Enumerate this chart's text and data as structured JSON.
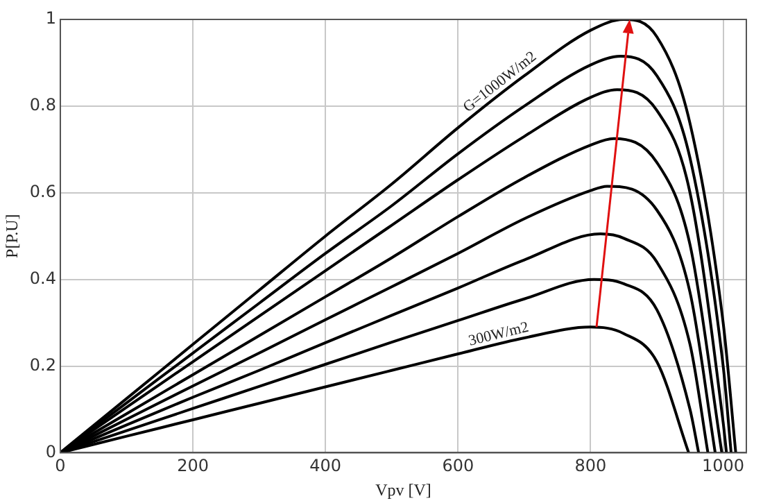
{
  "chart_data": {
    "type": "line",
    "xlabel": "Vpv [V]",
    "ylabel": "P[P.U]",
    "xlim": [
      0,
      1035
    ],
    "xticks": [
      0,
      200,
      400,
      600,
      800,
      1000
    ],
    "ylim": [
      0,
      1
    ],
    "yticks": [
      0,
      0.2,
      0.4,
      0.6,
      0.8,
      1
    ],
    "grid": true,
    "legend": false,
    "marker": "none",
    "line_style": "solid",
    "series": [
      {
        "color": "#000000",
        "x": [
          0,
          100,
          200,
          300,
          400,
          500,
          600,
          700,
          800,
          850,
          900,
          950,
          1000,
          1019
        ],
        "values": [
          0,
          0.125,
          0.25,
          0.375,
          0.5,
          0.62,
          0.75,
          0.87,
          0.975,
          1.0,
          0.96,
          0.76,
          0.3,
          0
        ]
      },
      {
        "color": "#000000",
        "x": [
          0,
          100,
          200,
          300,
          400,
          500,
          600,
          700,
          800,
          845,
          900,
          950,
          1000,
          1012
        ],
        "values": [
          0,
          0.115,
          0.23,
          0.345,
          0.46,
          0.57,
          0.69,
          0.8,
          0.895,
          0.915,
          0.87,
          0.68,
          0.2,
          0
        ]
      },
      {
        "color": "#000000",
        "x": [
          0,
          100,
          200,
          300,
          400,
          500,
          600,
          700,
          800,
          840,
          900,
          950,
          1000,
          1005
        ],
        "values": [
          0,
          0.105,
          0.21,
          0.315,
          0.42,
          0.525,
          0.63,
          0.73,
          0.82,
          0.838,
          0.79,
          0.6,
          0.07,
          0
        ]
      },
      {
        "color": "#000000",
        "x": [
          0,
          100,
          200,
          300,
          400,
          500,
          600,
          700,
          800,
          835,
          900,
          950,
          998
        ],
        "values": [
          0,
          0.09,
          0.18,
          0.27,
          0.36,
          0.45,
          0.545,
          0.635,
          0.71,
          0.725,
          0.67,
          0.48,
          0
        ]
      },
      {
        "color": "#000000",
        "x": [
          0,
          100,
          200,
          300,
          400,
          500,
          600,
          700,
          800,
          825,
          900,
          950,
          988
        ],
        "values": [
          0,
          0.077,
          0.154,
          0.23,
          0.307,
          0.383,
          0.46,
          0.54,
          0.605,
          0.615,
          0.56,
          0.37,
          0
        ]
      },
      {
        "color": "#000000",
        "x": [
          0,
          100,
          200,
          300,
          400,
          500,
          600,
          700,
          815,
          850,
          900,
          950,
          977
        ],
        "values": [
          0,
          0.064,
          0.128,
          0.19,
          0.254,
          0.317,
          0.38,
          0.445,
          0.505,
          0.495,
          0.44,
          0.25,
          0
        ]
      },
      {
        "color": "#000000",
        "x": [
          0,
          100,
          200,
          300,
          400,
          500,
          600,
          700,
          805,
          850,
          900,
          950,
          963
        ],
        "values": [
          0,
          0.051,
          0.102,
          0.153,
          0.204,
          0.255,
          0.305,
          0.355,
          0.4,
          0.39,
          0.33,
          0.1,
          0
        ]
      },
      {
        "color": "#000000",
        "x": [
          0,
          100,
          200,
          300,
          400,
          500,
          600,
          700,
          800,
          850,
          900,
          948
        ],
        "values": [
          0,
          0.038,
          0.076,
          0.114,
          0.152,
          0.19,
          0.228,
          0.265,
          0.29,
          0.275,
          0.21,
          0
        ]
      }
    ],
    "annotations": [
      {
        "text": "G=1000W/m2",
        "x": 620,
        "y": 0.775
      },
      {
        "text": "300W/m2",
        "x": 620,
        "y": 0.235
      }
    ]
  }
}
